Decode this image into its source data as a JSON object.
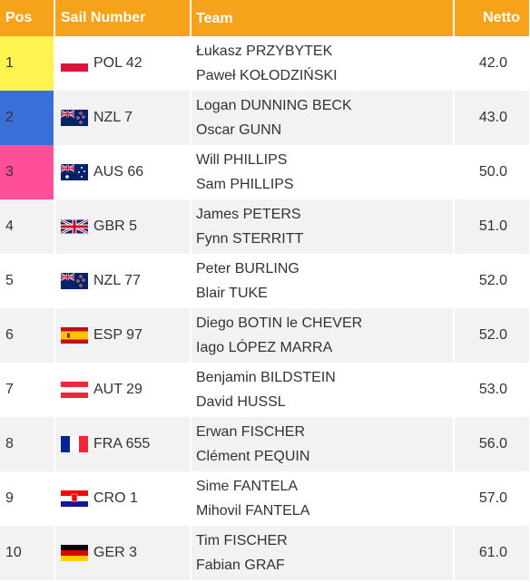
{
  "header": {
    "pos": "Pos",
    "sail": "Sail Number",
    "team": "Team",
    "netto": "Netto"
  },
  "rows": [
    {
      "pos": 1,
      "sail": "POL 42",
      "team": [
        "Łukasz PRZYBYTEK",
        "Paweł KOŁODZIŃSKI"
      ],
      "netto": "42.0"
    },
    {
      "pos": 2,
      "sail": "NZL 7",
      "team": [
        "Logan DUNNING BECK",
        "Oscar GUNN"
      ],
      "netto": "43.0"
    },
    {
      "pos": 3,
      "sail": "AUS 66",
      "team": [
        "Will PHILLIPS",
        "Sam PHILLIPS"
      ],
      "netto": "50.0"
    },
    {
      "pos": 4,
      "sail": "GBR 5",
      "team": [
        "James PETERS",
        "Fynn STERRITT"
      ],
      "netto": "51.0"
    },
    {
      "pos": 5,
      "sail": "NZL 77",
      "team": [
        "Peter BURLING",
        "Blair TUKE"
      ],
      "netto": "52.0"
    },
    {
      "pos": 6,
      "sail": "ESP 97",
      "team": [
        "Diego BOTIN le CHEVER",
        "Iago LÓPEZ MARRA"
      ],
      "netto": "52.0"
    },
    {
      "pos": 7,
      "sail": "AUT 29",
      "team": [
        "Benjamin BILDSTEIN",
        "David HUSSL"
      ],
      "netto": "53.0"
    },
    {
      "pos": 8,
      "sail": "FRA 655",
      "team": [
        "Erwan FISCHER",
        "Clément PEQUIN"
      ],
      "netto": "56.0"
    },
    {
      "pos": 9,
      "sail": "CRO 1",
      "team": [
        "Sime FANTELA",
        "Mihovil FANTELA"
      ],
      "netto": "57.0"
    },
    {
      "pos": 10,
      "sail": "GER 3",
      "team": [
        "Tim FISCHER",
        "Fabian GRAF"
      ],
      "netto": "61.0"
    }
  ]
}
